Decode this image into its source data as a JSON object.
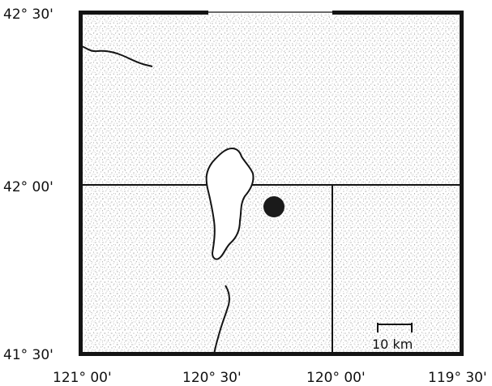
{
  "map": {
    "lat_labels": [
      "42° 30'",
      "42° 00'",
      "41° 30'"
    ],
    "lon_labels": [
      "121° 00'",
      "120° 30'",
      "120° 00'",
      "119° 30'"
    ],
    "scale_bar_label": "10 km",
    "colors": {
      "background": "#ffffff",
      "land_stipple": "#9a9a9a",
      "lines": "#141414",
      "marker": "#1a1a1a"
    },
    "features": {
      "lake_outline": "irregular lake shoreline west of 120° 15', straddling 42° 00'",
      "event_marker": "filled black circle east of the lake, just south of 42° 00'",
      "coastline_northwest": "shoreline segment near 42° 25', 121° 00'",
      "river_south": "linear feature running south from near 41° 45', 120° 20'"
    }
  }
}
